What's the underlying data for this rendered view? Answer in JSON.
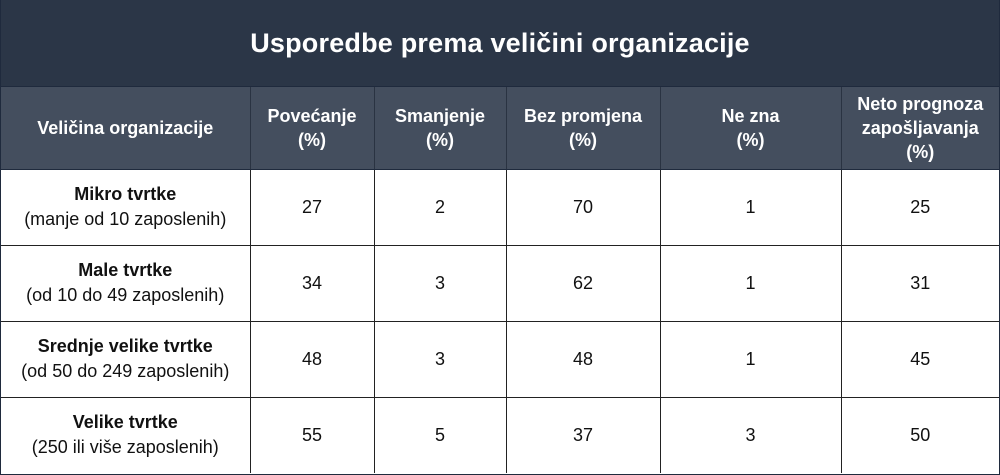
{
  "title": "Usporedbe prema veličini organizacije",
  "headers": [
    [
      "Veličina organizacije"
    ],
    [
      "Povećanje",
      "(%)"
    ],
    [
      "Smanjenje",
      "(%)"
    ],
    [
      "Bez promjena",
      "(%)"
    ],
    [
      "Ne zna",
      "(%)"
    ],
    [
      "Neto prognoza",
      "zapošljavanja",
      "(%)"
    ]
  ],
  "rows": [
    {
      "name": "Mikro tvrtke",
      "sub": "(manje od 10 zaposlenih)",
      "values": [
        "27",
        "2",
        "70",
        "1",
        "25"
      ]
    },
    {
      "name": "Male tvrtke",
      "sub": "(od 10 do 49 zaposlenih)",
      "values": [
        "34",
        "3",
        "62",
        "1",
        "31"
      ]
    },
    {
      "name": "Srednje velike tvrtke",
      "sub": "(od 50 do 249 zaposlenih)",
      "values": [
        "48",
        "3",
        "48",
        "1",
        "45"
      ]
    },
    {
      "name": "Velike tvrtke",
      "sub": "(250 ili više zaposlenih)",
      "values": [
        "55",
        "5",
        "37",
        "3",
        "50"
      ]
    }
  ],
  "colors": {
    "title_bg": "#2b3647",
    "header_bg": "#444e5e",
    "text": "#111111"
  }
}
